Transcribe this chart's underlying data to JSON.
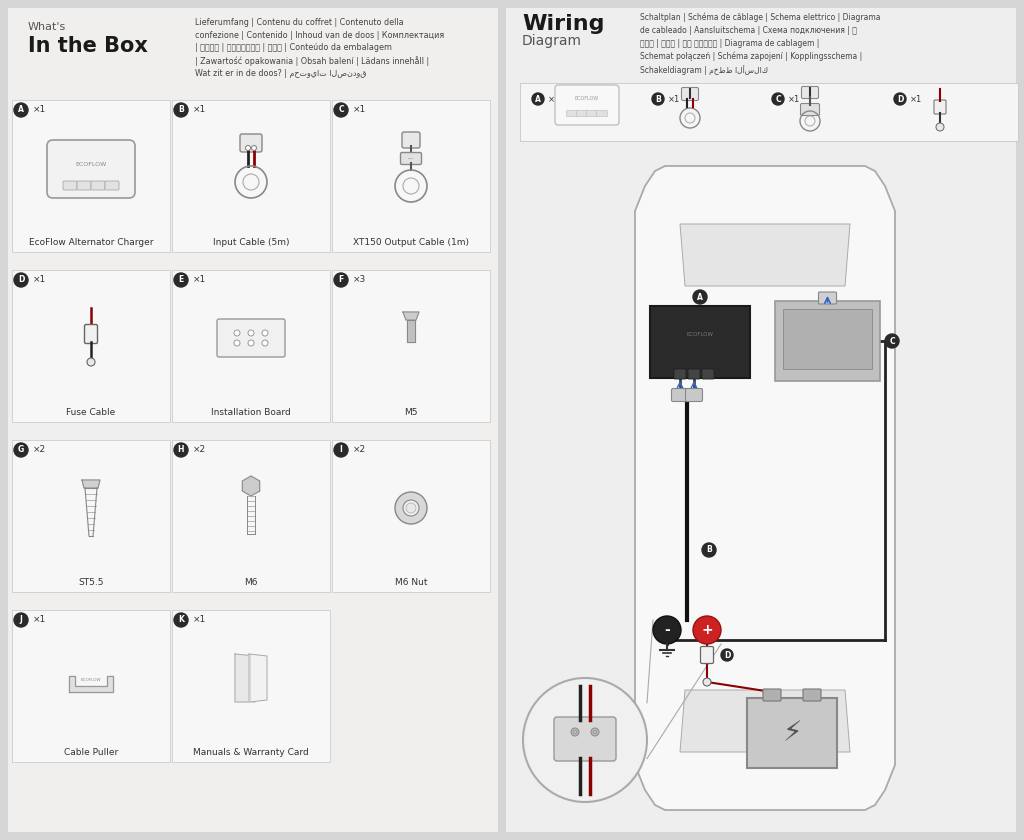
{
  "bg_color": "#d5d5d5",
  "left_bg": "#f0efee",
  "right_bg": "#eeeeee",
  "title_left_line1": "What's",
  "title_left_line2": "In the Box",
  "title_right_line1": "Wiring",
  "title_right_line2": "Diagram",
  "left_subtitle": "Lieferumfang | Contenu du coffret | Contenuto della\nconfezione | Contenido | Inhoud van de doos | Комплектация\n| 包装清单 | 同梱物について | 구성품 | Conteúdo da embalagem\n| Zawartość opakowania | Obsah balení | Lädans innehåll |\nWat zit er in de doos? | محتويات الصندوق",
  "right_subtitle": "Schaltplan | Schéma de câblage | Schema elettrico | Diagrama\nde cableado | Aansluitschema | Схема подключения | 连\n接示意 | 配線図 | 배선 다이어그램 | Diagrama de cablagem |\nSchemat połączeń | Schéma zapojení | Kopplingsschema |\nSchakeldiagram | مخطط الأسلاك",
  "items": [
    {
      "label": "A",
      "qty": "×1",
      "name": "EcoFlow Alternator Charger",
      "type": "charger"
    },
    {
      "label": "B",
      "qty": "×1",
      "name": "Input Cable (5m)",
      "type": "cable_input"
    },
    {
      "label": "C",
      "qty": "×1",
      "name": "XT150 Output Cable (1m)",
      "type": "cable_output"
    },
    {
      "label": "D",
      "qty": "×1",
      "name": "Fuse Cable",
      "type": "fuse"
    },
    {
      "label": "E",
      "qty": "×1",
      "name": "Installation Board",
      "type": "board"
    },
    {
      "label": "F",
      "qty": "×3",
      "name": "M5",
      "type": "screw_m5"
    },
    {
      "label": "G",
      "qty": "×2",
      "name": "ST5.5",
      "type": "screw_st"
    },
    {
      "label": "H",
      "qty": "×2",
      "name": "M6",
      "type": "screw_m6"
    },
    {
      "label": "I",
      "qty": "×2",
      "name": "M6 Nut",
      "type": "nut"
    },
    {
      "label": "J",
      "qty": "×1",
      "name": "Cable Puller",
      "type": "puller"
    },
    {
      "label": "K",
      "qty": "×1",
      "name": "Manuals & Warranty Card",
      "type": "manual"
    }
  ]
}
